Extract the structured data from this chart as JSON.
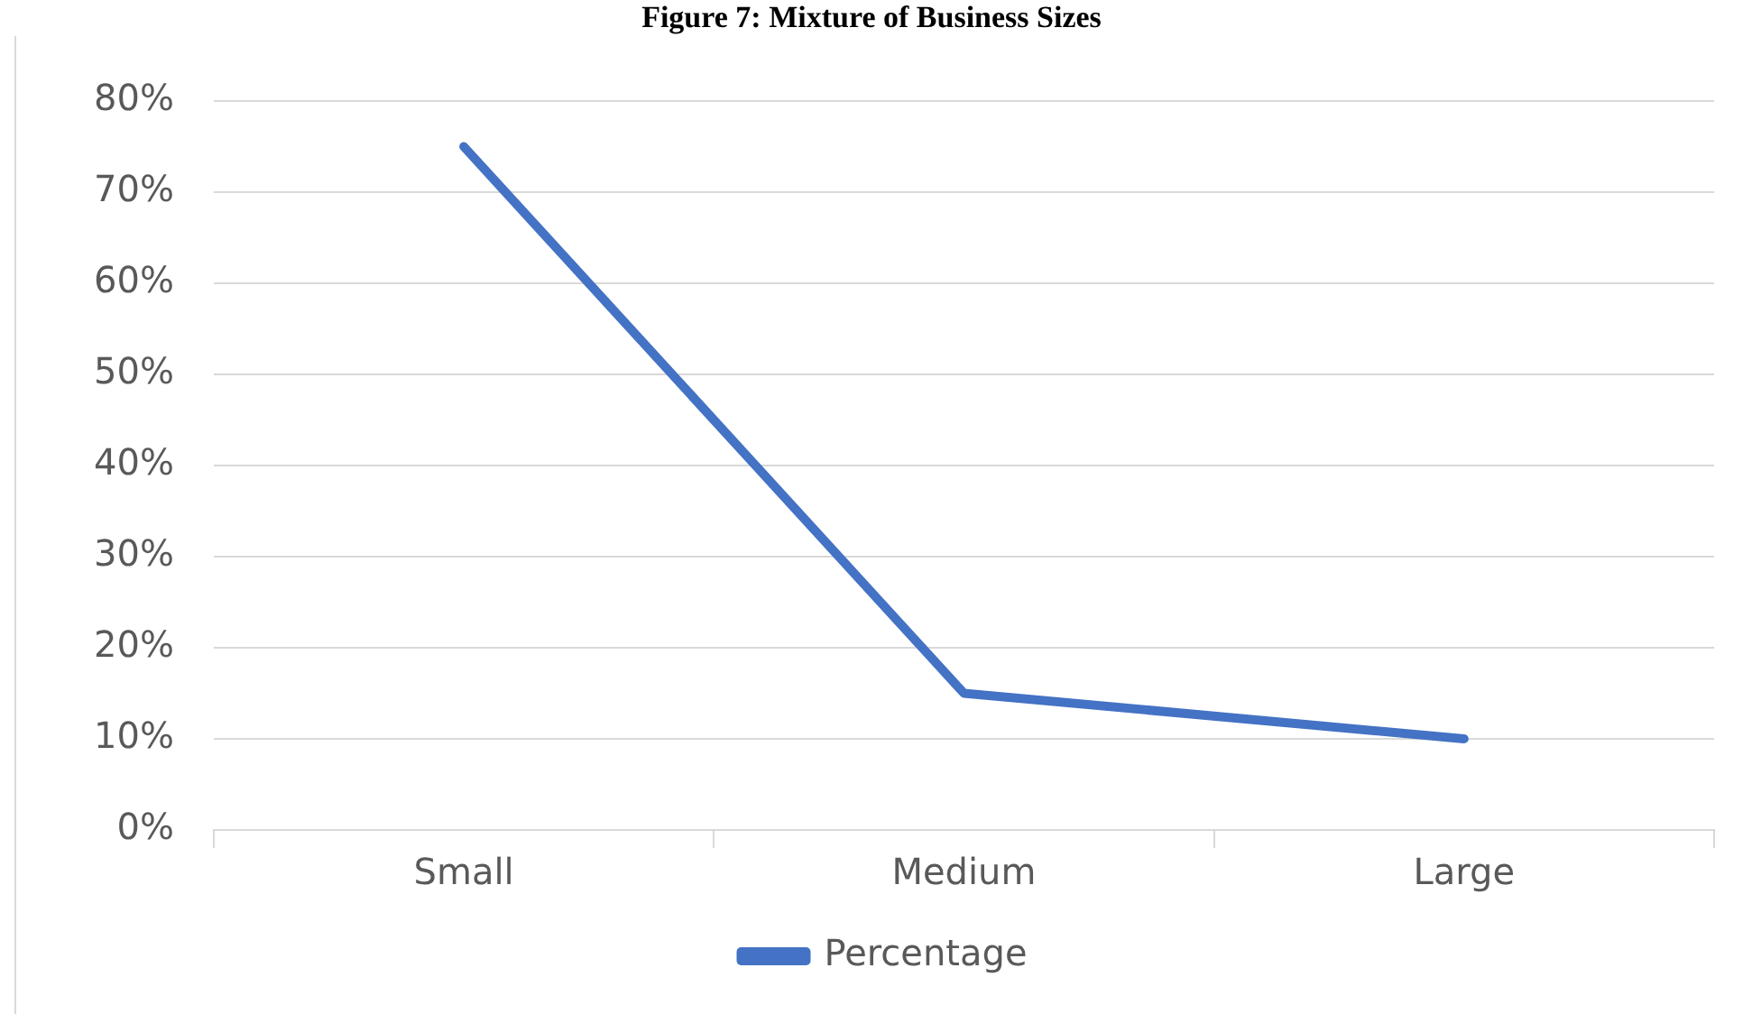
{
  "chart_data": {
    "type": "line",
    "title": "Figure 7: Mixture of Business Sizes",
    "categories": [
      "Small",
      "Medium",
      "Large"
    ],
    "series": [
      {
        "name": "Percentage",
        "color": "#4472c4",
        "values": [
          75,
          15,
          10
        ]
      }
    ],
    "ylim": [
      0,
      80
    ],
    "yticks": [
      {
        "value": 0,
        "label": "0%"
      },
      {
        "value": 10,
        "label": "10%"
      },
      {
        "value": 20,
        "label": "20%"
      },
      {
        "value": 30,
        "label": "30%"
      },
      {
        "value": 40,
        "label": "40%"
      },
      {
        "value": 50,
        "label": "50%"
      },
      {
        "value": 60,
        "label": "60%"
      },
      {
        "value": 70,
        "label": "70%"
      },
      {
        "value": 80,
        "label": "80%"
      }
    ],
    "grid": "y",
    "legend": "bottom",
    "marker": "none",
    "line_style": "solid"
  }
}
